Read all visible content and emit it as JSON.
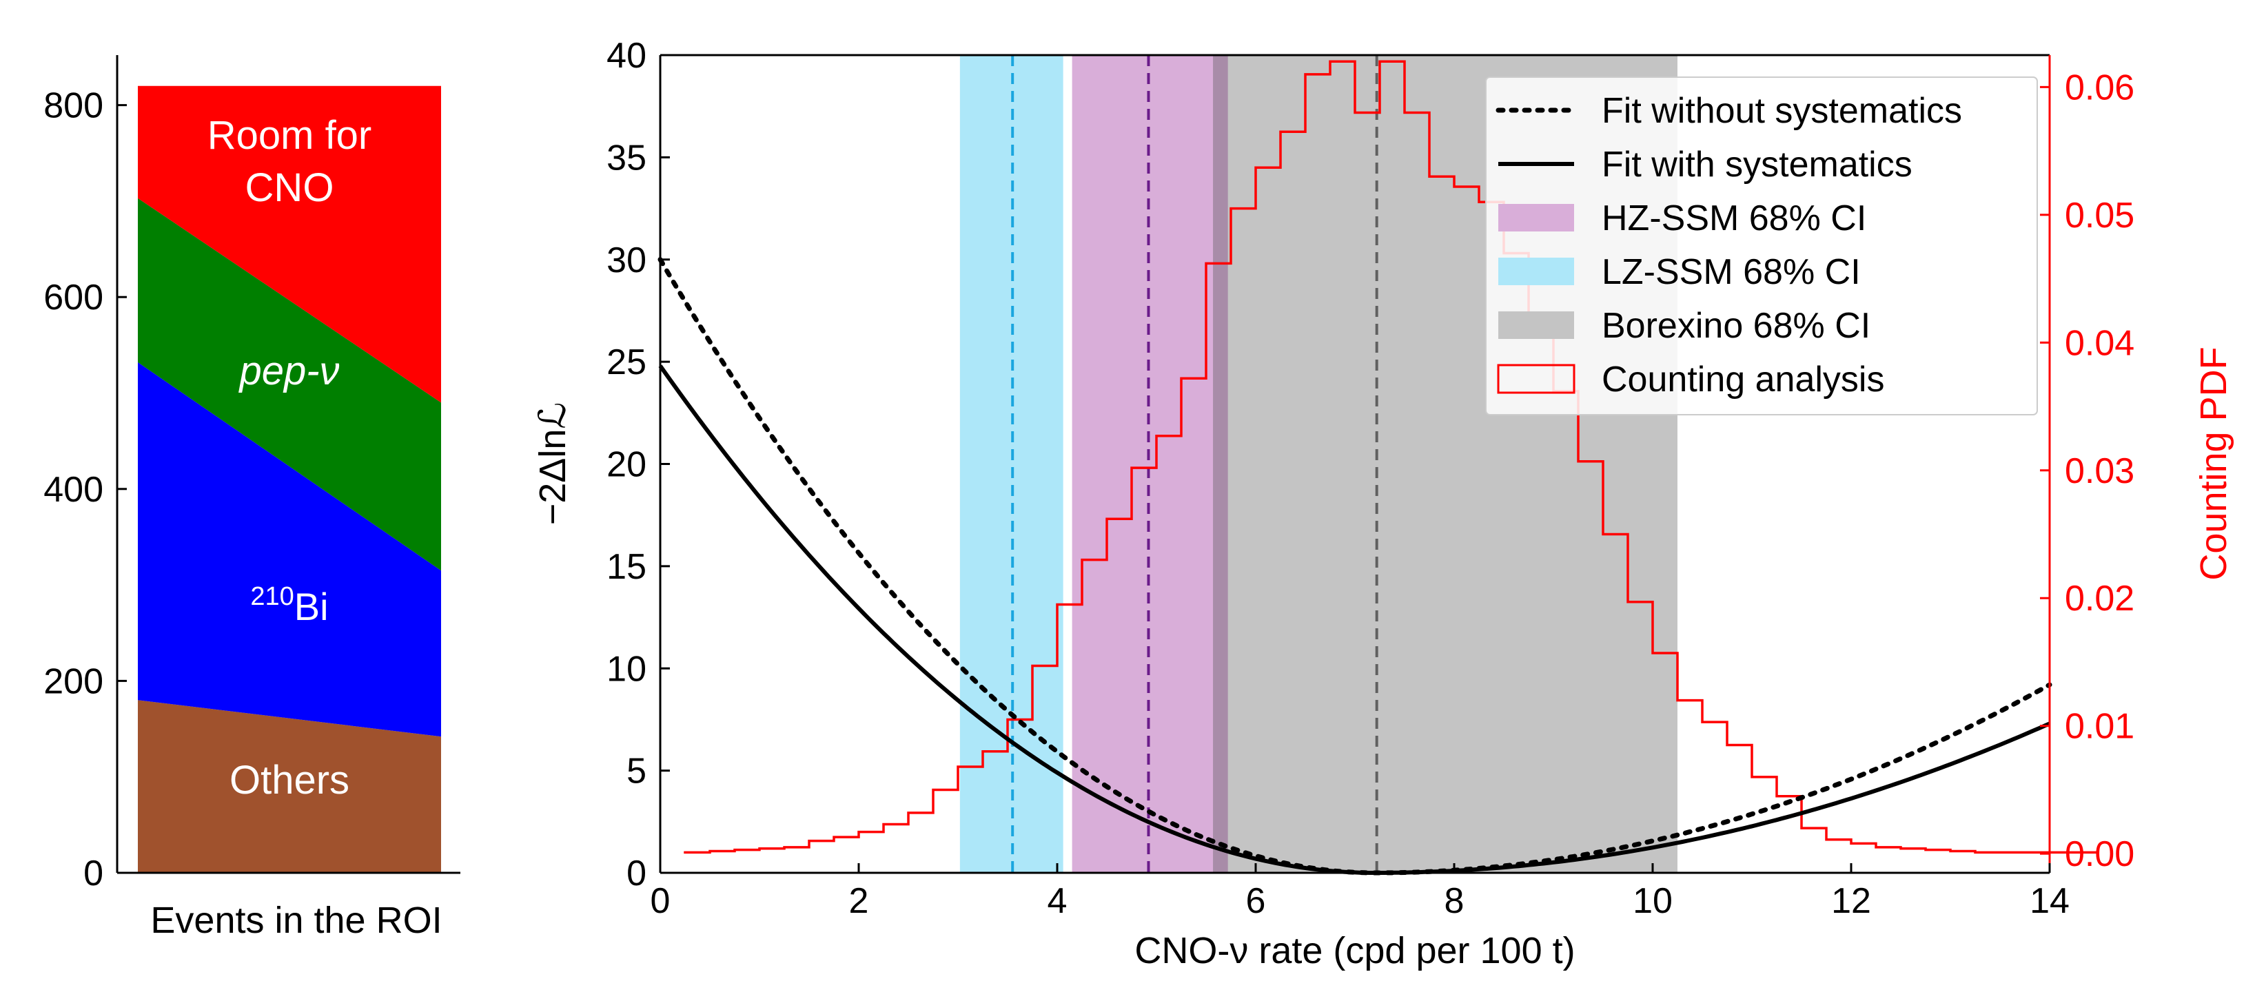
{
  "colors": {
    "cno_region": "#ff0000",
    "pep_region": "#007f00",
    "bi210_region": "#0000ff",
    "others_region": "#a0522d",
    "region_text": "#ffffff",
    "hz_band": "#d9aed9",
    "lz_band": "#ade7f9",
    "borexino_band": "#c4c4c4",
    "hz_line": "#6a1b8a",
    "lz_line": "#1aa6df",
    "borexino_line": "#606060",
    "counting": "#ff0000",
    "axis": "#000000"
  },
  "chart_data": [
    {
      "type": "area",
      "xlabel": "Events in the ROI",
      "ylabel": "",
      "ylim": [
        0,
        850
      ],
      "yticks": [
        0,
        200,
        400,
        600,
        800
      ],
      "series": [
        {
          "name": "Others",
          "label_lines": [
            "Others"
          ],
          "color_key": "others_region",
          "bottom": [
            0,
            0
          ],
          "top": [
            180,
            142
          ]
        },
        {
          "name": "210Bi",
          "label_sup": "210",
          "label_main": "Bi",
          "color_key": "bi210_region",
          "bottom": [
            180,
            142
          ],
          "top": [
            532,
            315
          ]
        },
        {
          "name": "pep-ν",
          "label_lines": [
            "pep-ν"
          ],
          "italic": true,
          "color_key": "pep_region",
          "bottom": [
            532,
            315
          ],
          "top": [
            703,
            490
          ]
        },
        {
          "name": "Room for CNO",
          "label_lines": [
            "Room for",
            "CNO"
          ],
          "color_key": "cno_region",
          "bottom": [
            703,
            490
          ],
          "top": [
            820,
            820
          ]
        }
      ]
    },
    {
      "type": "line",
      "xlabel": "CNO-ν rate (cpd per 100 t)",
      "ylabel": "−2Δlnℒ",
      "ylabel_right": "Counting PDF",
      "xlim": [
        0,
        14
      ],
      "ylim": [
        0,
        40
      ],
      "ylim_right": [
        -0.0015,
        0.0625
      ],
      "xticks": [
        0,
        2,
        4,
        6,
        8,
        10,
        12,
        14
      ],
      "yticks": [
        0,
        5,
        10,
        15,
        20,
        25,
        30,
        35,
        40
      ],
      "yticks_right": [
        "0.00",
        "0.01",
        "0.02",
        "0.03",
        "0.04",
        "0.05",
        "0.06"
      ],
      "bands": [
        {
          "name": "LZ-SSM 68% CI",
          "x0": 3.02,
          "x1": 4.06,
          "color_key": "lz_band",
          "center": 3.55,
          "line_color_key": "lz_line"
        },
        {
          "name": "HZ-SSM 68% CI",
          "x0": 4.15,
          "x1": 5.72,
          "color_key": "hz_band",
          "center": 4.92,
          "line_color_key": "hz_line"
        },
        {
          "name": "Borexino 68% CI",
          "x0": 5.57,
          "x1": 10.25,
          "color_key": "borexino_band",
          "center": 7.22,
          "line_color_key": "borexino_line"
        }
      ],
      "likelihood_curves": [
        {
          "name": "Fit without systematics",
          "style": "dotted",
          "minimum": 7.2,
          "y_at_zero": 30,
          "y_at_max": 9.2
        },
        {
          "name": "Fit with systematics",
          "style": "solid",
          "minimum": 7.2,
          "y_at_zero": 24.8,
          "y_at_max": 7.3
        }
      ],
      "histogram": {
        "name": "Counting analysis",
        "bin_width": 0.25,
        "bin_start": 0.25,
        "values": [
          0.0001,
          0.0002,
          0.0003,
          0.0004,
          0.0005,
          0.001,
          0.0013,
          0.0017,
          0.0023,
          0.0032,
          0.005,
          0.0068,
          0.008,
          0.0105,
          0.0147,
          0.0195,
          0.023,
          0.0262,
          0.0302,
          0.0327,
          0.0372,
          0.0462,
          0.0505,
          0.0537,
          0.0565,
          0.061,
          0.062,
          0.058,
          0.062,
          0.058,
          0.053,
          0.0522,
          0.051,
          0.047,
          0.0412,
          0.0362,
          0.0307,
          0.025,
          0.0197,
          0.0157,
          0.012,
          0.0103,
          0.0085,
          0.006,
          0.0045,
          0.002,
          0.0011,
          0.0008,
          0.0005,
          0.0004,
          0.0003,
          0.0002,
          0.0001,
          0.0001,
          0.0001,
          0.0001,
          0.0001,
          0.0001
        ]
      },
      "legend": {
        "placement": "top-right",
        "entries": [
          {
            "label": "Fit without systematics",
            "kind": "dotted"
          },
          {
            "label": "Fit with systematics",
            "kind": "solid"
          },
          {
            "label": "HZ-SSM 68% CI",
            "kind": "patch",
            "color_key": "hz_band"
          },
          {
            "label": "LZ-SSM 68% CI",
            "kind": "patch",
            "color_key": "lz_band"
          },
          {
            "label": "Borexino 68% CI",
            "kind": "patch",
            "color_key": "borexino_band"
          },
          {
            "label": "Counting analysis",
            "kind": "outline",
            "color_key": "counting"
          }
        ]
      },
      "grid": false
    }
  ]
}
